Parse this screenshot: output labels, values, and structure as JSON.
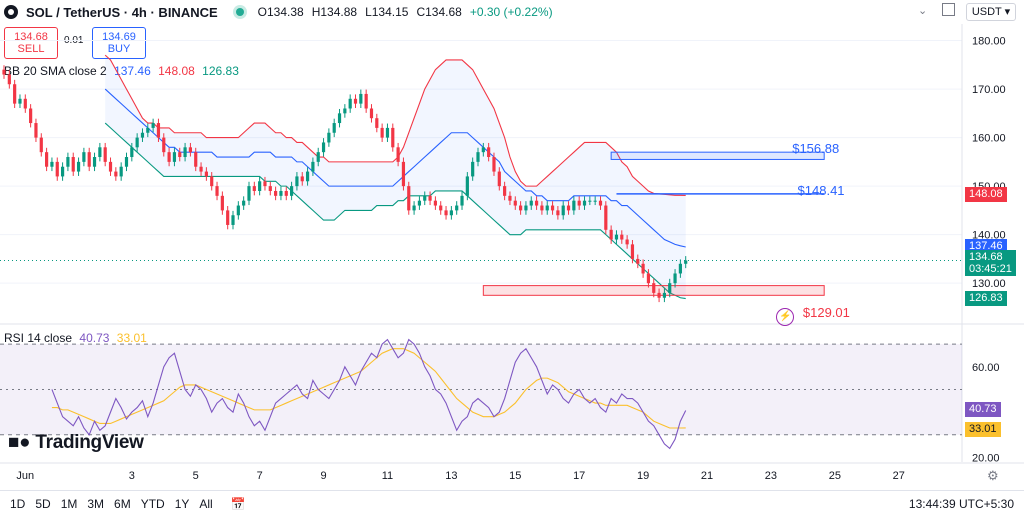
{
  "header": {
    "symbol": "SOL / TetherUS · 4h · BINANCE",
    "open": "O134.38",
    "high": "H134.88",
    "low": "L134.15",
    "close": "C134.68",
    "change": "+0.30 (+0.22%)",
    "currency": "USDT"
  },
  "trade": {
    "sell_price": "134.68",
    "sell_label": "SELL",
    "spread": "0.01",
    "buy_price": "134.69",
    "buy_label": "BUY"
  },
  "indicators": {
    "bb_label": "BB 20 SMA close 2",
    "bb_basis": "137.46",
    "bb_upper": "148.08",
    "bb_lower": "126.83",
    "rsi_label": "RSI 14 close",
    "rsi_value": "40.73",
    "rsi_ma": "33.01"
  },
  "annotations": {
    "level_high": "$156.88",
    "level_mid": "$148.41",
    "level_low": "$129.01"
  },
  "price_tags": {
    "upper": "148.08",
    "basis": "137.46",
    "last": "134.68",
    "countdown": "03:45:21",
    "lower": "126.83"
  },
  "rsi_tags": {
    "value": "40.73",
    "ma": "33.01"
  },
  "brand": "TradingView",
  "bottom": {
    "ranges": [
      "1D",
      "5D",
      "1M",
      "3M",
      "6M",
      "YTD",
      "1Y",
      "All"
    ],
    "clock": "13:44:39 UTC+5:30"
  },
  "colors": {
    "up": "#089981",
    "down": "#f23645",
    "bb_upper": "#f23645",
    "bb_lower": "#089981",
    "bb_basis": "#2962ff",
    "rsi": "#7e57c2",
    "rsi_ma": "#fbc02d"
  },
  "chart_data": [
    {
      "type": "candlestick",
      "y_ticks": [
        180,
        170,
        160,
        150,
        140,
        130
      ],
      "y_tick_labels": [
        "180.00",
        "170.00",
        "160.00",
        "150.00",
        "140.00",
        "130.00"
      ],
      "ylim": [
        122,
        183
      ],
      "x_ticks": [
        {
          "label": "Jun",
          "index": 4
        },
        {
          "label": "3",
          "index": 24
        },
        {
          "label": "5",
          "index": 36
        },
        {
          "label": "7",
          "index": 48
        },
        {
          "label": "9",
          "index": 60
        },
        {
          "label": "11",
          "index": 72
        },
        {
          "label": "13",
          "index": 84
        },
        {
          "label": "15",
          "index": 96
        },
        {
          "label": "17",
          "index": 108
        },
        {
          "label": "19",
          "index": 120
        },
        {
          "label": "21",
          "index": 132
        },
        {
          "label": "23",
          "index": 144
        },
        {
          "label": "25",
          "index": 156
        },
        {
          "label": "27",
          "index": 168
        }
      ],
      "x_max_index": 178,
      "closes": [
        173,
        171,
        167,
        168,
        166,
        163,
        160,
        157,
        154,
        155,
        152,
        154,
        156,
        153,
        155,
        157,
        154,
        156,
        158,
        155,
        153,
        152,
        154,
        156,
        158,
        160,
        161,
        162,
        163,
        160,
        157,
        155,
        157,
        156,
        158,
        157,
        154,
        153,
        152,
        150,
        148,
        145,
        142,
        144,
        146,
        147,
        150,
        149,
        151,
        150,
        149,
        148,
        149,
        148,
        150,
        152,
        151,
        153,
        155,
        157,
        159,
        161,
        163,
        165,
        166,
        168,
        167,
        169,
        166,
        164,
        162,
        160,
        162,
        158,
        155,
        150,
        145,
        146,
        147,
        148,
        147,
        146,
        145,
        144,
        145,
        146,
        148,
        152,
        155,
        157,
        158,
        156,
        153,
        150,
        148,
        147,
        146,
        145,
        146,
        147,
        146,
        145,
        146,
        145,
        144,
        146,
        145,
        147,
        146,
        147,
        147,
        147,
        146,
        141,
        139,
        140,
        139,
        138,
        135,
        134,
        132,
        130,
        128,
        127,
        128,
        130,
        132,
        134,
        134.68
      ],
      "bb_upper": [
        177,
        176,
        174,
        172,
        170,
        168,
        166,
        164,
        163,
        163,
        162,
        162,
        162,
        161,
        161,
        161,
        161,
        161,
        161,
        160,
        160,
        160,
        160,
        160,
        160,
        160,
        161,
        162,
        163,
        163,
        163,
        162,
        161,
        161,
        160,
        160,
        159,
        159,
        158,
        157,
        156,
        156,
        155,
        155,
        155,
        155,
        155,
        155,
        155,
        155,
        155,
        155,
        155,
        155,
        155,
        156,
        158,
        161,
        164,
        167,
        170,
        172,
        174,
        175,
        176,
        176,
        176,
        176,
        175,
        174,
        172,
        170,
        168,
        166,
        163,
        160,
        156,
        153,
        151,
        150,
        150,
        150,
        151,
        152,
        153,
        154,
        155,
        156,
        157,
        158,
        159,
        159,
        159,
        159,
        159,
        158,
        157,
        155,
        154,
        152,
        151,
        150,
        149,
        148.5,
        148.4,
        148.3,
        148.2,
        148.1,
        148.1,
        148.08
      ],
      "bb_basis": [
        170,
        169,
        168,
        167,
        166,
        165,
        164,
        163,
        162,
        161,
        160,
        159,
        158,
        158,
        157,
        157,
        157,
        157,
        157,
        157,
        157,
        156,
        156,
        156,
        156,
        156,
        156,
        156,
        157,
        157,
        157,
        157,
        156,
        156,
        156,
        156,
        155,
        155,
        154,
        153,
        152,
        151,
        150,
        150,
        150,
        150,
        150,
        150,
        150,
        150,
        150,
        150,
        150,
        150,
        150,
        151,
        152,
        153,
        154,
        155,
        156,
        157,
        158,
        159,
        160,
        161,
        161,
        161,
        161,
        160,
        159,
        158,
        157,
        156,
        155,
        153,
        152,
        151,
        150,
        149,
        149,
        148,
        148,
        147,
        147,
        147,
        147,
        147,
        148,
        148,
        148,
        148,
        148,
        148,
        148,
        147,
        147,
        146,
        146,
        145,
        144,
        143,
        142,
        141,
        140,
        139,
        138.5,
        138,
        137.7,
        137.46
      ],
      "bb_lower": [
        163,
        162,
        161,
        160,
        159,
        158,
        157,
        156,
        155,
        154,
        153,
        152,
        152,
        152,
        152,
        152,
        152,
        152,
        152,
        152,
        152,
        152,
        152,
        152,
        152,
        152,
        152,
        152,
        152,
        152,
        151,
        151,
        151,
        150,
        150,
        149,
        148,
        147,
        146,
        145,
        144,
        143,
        143,
        143,
        144,
        145,
        145,
        145,
        145,
        145,
        145,
        146,
        146,
        146,
        146,
        147,
        147,
        148,
        148,
        148,
        148,
        148,
        149,
        149,
        149,
        149,
        149,
        149,
        148,
        147,
        146,
        145,
        144,
        143,
        142,
        141,
        140,
        140,
        140,
        141,
        141,
        141,
        141,
        141,
        141,
        141,
        141,
        141,
        141,
        141,
        141,
        141,
        141,
        141,
        140,
        139,
        138,
        137,
        136,
        135,
        134,
        133,
        132,
        131,
        130,
        129,
        128,
        127.5,
        127,
        126.83
      ],
      "zones": [
        {
          "kind": "resistance",
          "y_low": 155.5,
          "y_high": 157,
          "x_from": 114,
          "x_to": 154
        },
        {
          "kind": "support",
          "y_low": 127.5,
          "y_high": 129.5,
          "x_from": 90,
          "x_to": 154
        }
      ],
      "hlines": [
        {
          "y": 148.41,
          "x_from": 115,
          "x_to": 154
        }
      ],
      "last_price": 134.68
    },
    {
      "type": "line",
      "name": "RSI 14 close",
      "y_ticks": [
        60,
        40,
        20
      ],
      "y_tick_labels": [
        "60.00",
        "40.00",
        "20.00"
      ],
      "ylim": [
        18,
        78
      ],
      "bands": [
        70,
        50,
        30
      ],
      "rsi": [
        50,
        44,
        38,
        36,
        34,
        38,
        33,
        30,
        36,
        32,
        34,
        40,
        46,
        42,
        37,
        40,
        42,
        45,
        38,
        44,
        52,
        60,
        64,
        66,
        58,
        50,
        47,
        52,
        50,
        46,
        40,
        44,
        46,
        42,
        40,
        48,
        44,
        38,
        34,
        36,
        32,
        38,
        44,
        46,
        48,
        50,
        52,
        48,
        46,
        54,
        50,
        48,
        46,
        50,
        54,
        60,
        56,
        52,
        58,
        62,
        66,
        64,
        70,
        72,
        68,
        64,
        66,
        72,
        70,
        66,
        60,
        56,
        50,
        48,
        44,
        38,
        32,
        36,
        38,
        44,
        46,
        44,
        42,
        38,
        40,
        46,
        54,
        62,
        66,
        68,
        64,
        60,
        54,
        48,
        52,
        50,
        46,
        44,
        48,
        50,
        46,
        44,
        46,
        42,
        40,
        46,
        44,
        48,
        46,
        46,
        44,
        40,
        36,
        34,
        30,
        26,
        24,
        28,
        36,
        40.73
      ],
      "rsi_ma": [
        42,
        42,
        41,
        41,
        40,
        39,
        38,
        37,
        36,
        35,
        35,
        35,
        36,
        37,
        38,
        39,
        40,
        41,
        42,
        43,
        44,
        45,
        47,
        49,
        51,
        52,
        52,
        52,
        51,
        50,
        49,
        48,
        47,
        46,
        45,
        44,
        43,
        42,
        41,
        41,
        41,
        41,
        42,
        43,
        44,
        45,
        46,
        47,
        48,
        49,
        50,
        51,
        52,
        53,
        54,
        55,
        56,
        57,
        58,
        60,
        62,
        64,
        66,
        67,
        68,
        68,
        68,
        67,
        66,
        64,
        62,
        60,
        58,
        55,
        52,
        49,
        46,
        44,
        42,
        40,
        39,
        38,
        38,
        38,
        39,
        40,
        42,
        44,
        47,
        50,
        52,
        54,
        55,
        55,
        54,
        53,
        51,
        49,
        48,
        47,
        46,
        45,
        44,
        44,
        43,
        43,
        43,
        43,
        43,
        42,
        41,
        40,
        38,
        36,
        35,
        34,
        33,
        33,
        33,
        33.01
      ],
      "last_value": 40.73,
      "last_ma": 33.01
    }
  ]
}
